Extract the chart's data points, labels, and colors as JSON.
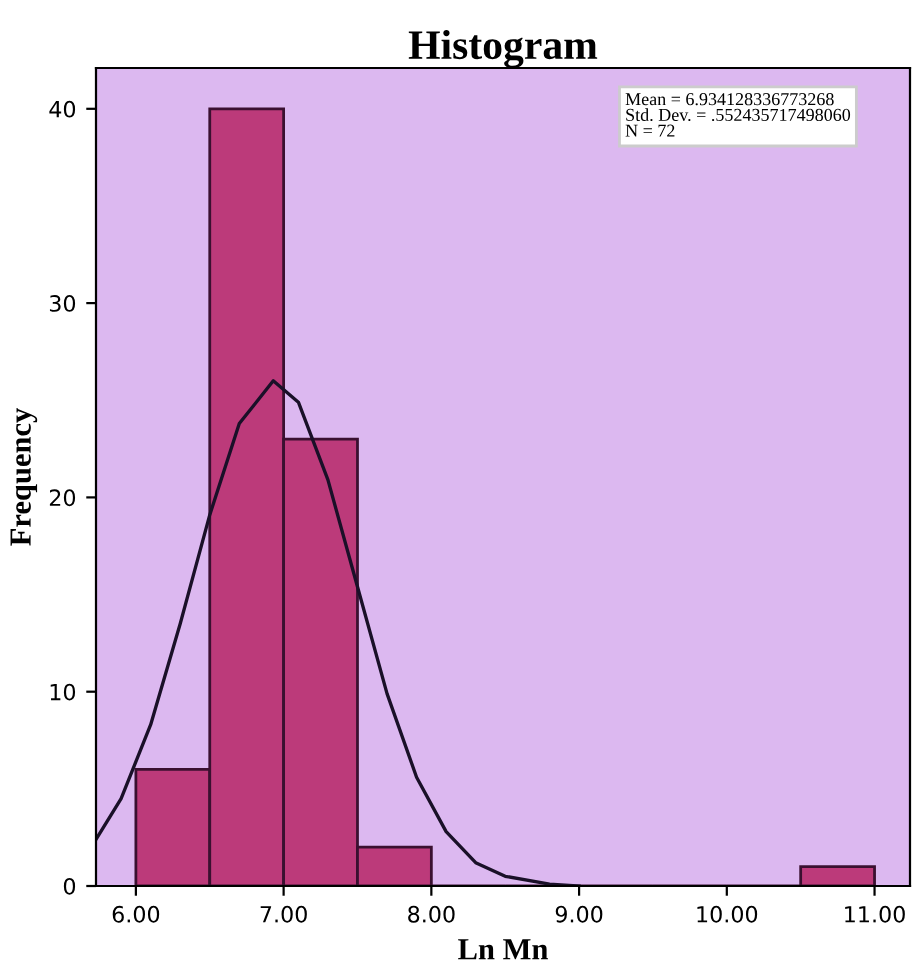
{
  "chart_data": {
    "type": "histogram",
    "title": "Histogram",
    "xlabel": "Ln Mn",
    "ylabel": "Frequency",
    "bins": [
      6.0,
      6.5,
      7.0,
      7.5,
      8.0,
      8.5,
      9.0,
      9.5,
      10.0,
      10.5,
      11.0
    ],
    "values": [
      6,
      40,
      23,
      2,
      0,
      0,
      0,
      0,
      0,
      1
    ],
    "color": "#bc3a7a",
    "series": [
      {
        "type": "line",
        "color": "#1a1028",
        "x": [
          5.73,
          5.9,
          6.1,
          6.3,
          6.5,
          6.7,
          6.93,
          7.1,
          7.3,
          7.5,
          7.7,
          7.9,
          8.1,
          8.3,
          8.5,
          8.8,
          9.0
        ],
        "values": [
          2.4,
          4.5,
          8.3,
          13.5,
          19.1,
          23.8,
          26.0,
          24.9,
          20.9,
          15.4,
          9.9,
          5.6,
          2.8,
          1.2,
          0.5,
          0.1,
          0
        ]
      }
    ],
    "xlim": [
      5.73,
      11.24
    ],
    "xticks": [
      {
        "value": 6,
        "label": "6.00"
      },
      {
        "value": 7,
        "label": "7.00"
      },
      {
        "value": 8,
        "label": "8.00"
      },
      {
        "value": 9,
        "label": "9.00"
      },
      {
        "value": 10,
        "label": "10.00"
      },
      {
        "value": 11,
        "label": "11.00"
      }
    ],
    "ylim": [
      0,
      42.1
    ],
    "yticks": [
      0,
      10,
      20,
      30,
      40
    ],
    "annotations": [
      "Mean = 6.934128336773268\nStd. Dev. = .552435717498060\nN = 72"
    ],
    "grid": false,
    "legend": false
  }
}
